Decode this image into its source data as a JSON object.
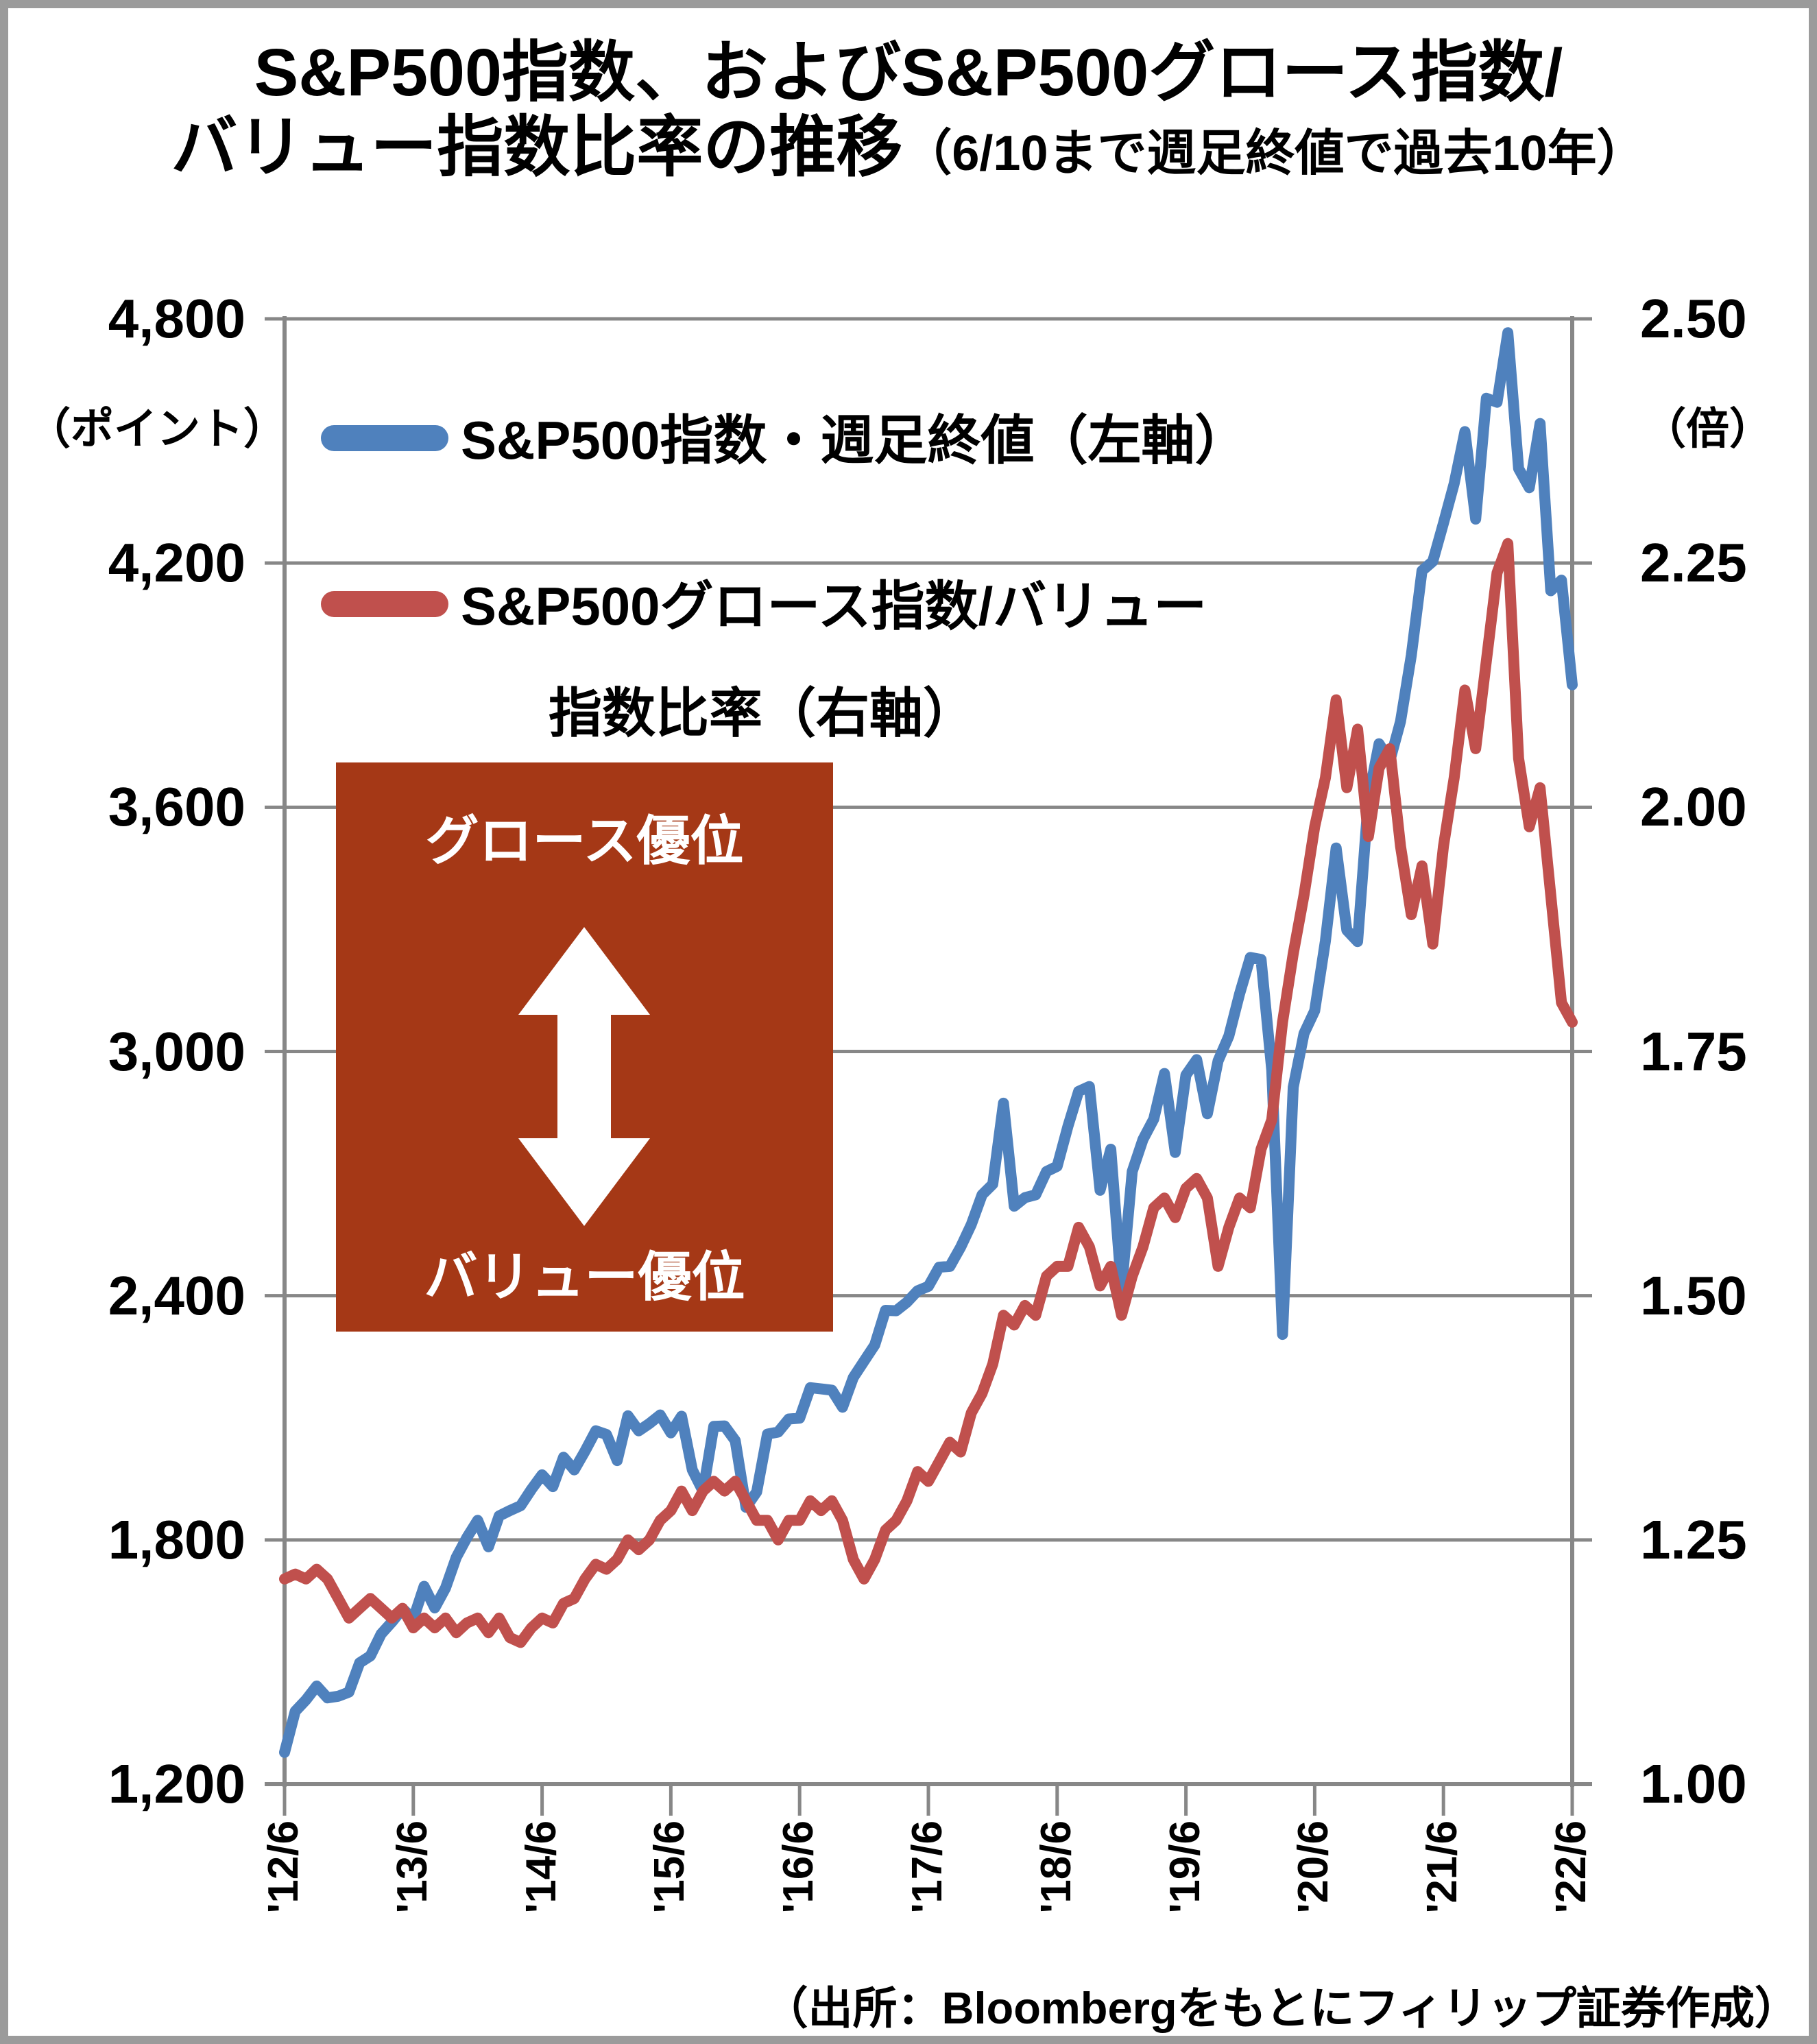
{
  "title": {
    "line1": "S&P500指数、およびS&P500グロース指数/",
    "line2_main": "バリュー指数比率の推移",
    "line2_note": "（6/10まで週足終値で過去10年）"
  },
  "legend": [
    {
      "label": "S&P500指数・週足終値（左軸）",
      "color": "#4F81BD"
    },
    {
      "label_line1": "S&P500グロース指数/バリュー",
      "label_line2": "指数比率（右軸）",
      "color": "#C0504D"
    }
  ],
  "annotation": {
    "top": "グロース優位",
    "bottom": "バリュー優位",
    "bg": "#A53816",
    "arrow_icon": "up-down-arrow",
    "arrow_color": "#ffffff"
  },
  "source": "（出所：Bloombergをもとにフィリップ証券作成）",
  "colors": {
    "grid": "#878787",
    "axis": "#878787",
    "sp500_line": "#4F81BD",
    "ratio_line": "#C0504D"
  },
  "chart_data": {
    "type": "line",
    "title": "S&P500指数、およびS&P500グロース指数/バリュー指数比率の推移（6/10まで週足終値で過去10年）",
    "x_interval": "monthly",
    "x_start": "2012-06",
    "x_end": "2022-06",
    "x_tick_labels": [
      "'12/6",
      "'13/6",
      "'14/6",
      "'15/6",
      "'16/6",
      "'17/6",
      "'18/6",
      "'19/6",
      "'20/6",
      "'21/6",
      "'22/6"
    ],
    "left_axis": {
      "unit": "（ポイント）",
      "min": 1200,
      "max": 4800,
      "tick_step": 600,
      "tick_labels": [
        "4,800",
        "4,200",
        "3,600",
        "3,000",
        "2,400",
        "1,800",
        "1,200"
      ]
    },
    "right_axis": {
      "unit": "（倍）",
      "min": 1.0,
      "max": 2.5,
      "tick_step": 0.25,
      "tick_labels": [
        "2.50",
        "2.25",
        "2.00",
        "1.75",
        "1.50",
        "1.25",
        "1.00"
      ]
    },
    "gridlines": true,
    "legend_position": "top-left-inside",
    "series": [
      {
        "name": "S&P500指数・週足終値（左軸）",
        "axis": "left",
        "color": "#4F81BD",
        "values": [
          1278,
          1379,
          1407,
          1441,
          1412,
          1416,
          1426,
          1498,
          1515,
          1569,
          1598,
          1631,
          1606,
          1686,
          1633,
          1682,
          1757,
          1806,
          1848,
          1783,
          1859,
          1872,
          1884,
          1924,
          1960,
          1931,
          2003,
          1972,
          2018,
          2068,
          2059,
          1995,
          2105,
          2068,
          2086,
          2107,
          2063,
          2104,
          1972,
          1920,
          2079,
          2080,
          2044,
          1880,
          1918,
          2060,
          2065,
          2097,
          2099,
          2174,
          2171,
          2168,
          2126,
          2199,
          2239,
          2279,
          2364,
          2363,
          2384,
          2412,
          2423,
          2470,
          2472,
          2519,
          2575,
          2648,
          2674,
          2873,
          2620,
          2641,
          2648,
          2705,
          2718,
          2816,
          2902,
          2914,
          2659,
          2760,
          2417,
          2705,
          2784,
          2834,
          2946,
          2752,
          2942,
          2980,
          2847,
          2977,
          3038,
          3141,
          3231,
          3226,
          2954,
          2305,
          2912,
          3044,
          3100,
          3271,
          3500,
          3298,
          3270,
          3622,
          3756,
          3714,
          3811,
          3973,
          4181,
          4204,
          4298,
          4395,
          4523,
          4308,
          4605,
          4595,
          4766,
          4432,
          4385,
          4543,
          4132,
          4158,
          3901
        ]
      },
      {
        "name": "S&P500グロース指数/バリュー指数比率（右軸）",
        "axis": "right",
        "color": "#C0504D",
        "values": [
          1.21,
          1.215,
          1.21,
          1.22,
          1.21,
          1.19,
          1.17,
          1.18,
          1.19,
          1.18,
          1.17,
          1.18,
          1.16,
          1.17,
          1.16,
          1.17,
          1.155,
          1.165,
          1.17,
          1.155,
          1.17,
          1.15,
          1.145,
          1.16,
          1.17,
          1.165,
          1.185,
          1.19,
          1.21,
          1.225,
          1.22,
          1.23,
          1.25,
          1.24,
          1.25,
          1.27,
          1.28,
          1.3,
          1.28,
          1.3,
          1.31,
          1.3,
          1.31,
          1.29,
          1.27,
          1.27,
          1.25,
          1.27,
          1.27,
          1.29,
          1.28,
          1.29,
          1.27,
          1.23,
          1.21,
          1.23,
          1.26,
          1.27,
          1.29,
          1.32,
          1.31,
          1.33,
          1.35,
          1.34,
          1.38,
          1.4,
          1.43,
          1.48,
          1.47,
          1.49,
          1.48,
          1.52,
          1.53,
          1.53,
          1.57,
          1.55,
          1.51,
          1.53,
          1.48,
          1.52,
          1.55,
          1.59,
          1.6,
          1.58,
          1.61,
          1.62,
          1.6,
          1.53,
          1.57,
          1.6,
          1.59,
          1.65,
          1.68,
          1.78,
          1.85,
          1.91,
          1.98,
          2.03,
          2.11,
          2.02,
          2.08,
          1.97,
          2.04,
          2.06,
          1.96,
          1.89,
          1.94,
          1.86,
          1.96,
          2.03,
          2.12,
          2.06,
          2.15,
          2.24,
          2.27,
          2.05,
          1.98,
          2.02,
          1.91,
          1.8,
          1.78
        ]
      }
    ]
  }
}
